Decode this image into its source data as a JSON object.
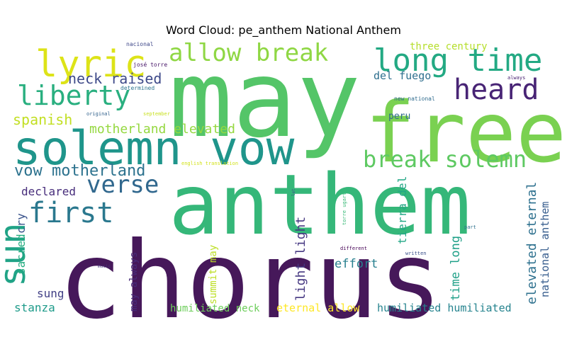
{
  "title": "Word Cloud: pe_anthem National Anthem",
  "words": [
    {
      "text": "may",
      "color": "#54c568"
    },
    {
      "text": "free",
      "color": "#7ad151"
    },
    {
      "text": "anthem",
      "color": "#35b779"
    },
    {
      "text": "chorus",
      "color": "#46185a"
    },
    {
      "text": "solemn vow",
      "color": "#1f958b"
    },
    {
      "text": "lyric",
      "color": "#dde318"
    },
    {
      "text": "allow break",
      "color": "#8fd744"
    },
    {
      "text": "long time",
      "color": "#23a983"
    },
    {
      "text": "heard",
      "color": "#482475"
    },
    {
      "text": "liberty",
      "color": "#29af7f"
    },
    {
      "text": "neck raised",
      "color": "#3e4a89"
    },
    {
      "text": "spanish",
      "color": "#c2df23"
    },
    {
      "text": "motherland elevated",
      "color": "#95d840"
    },
    {
      "text": "break solemn",
      "color": "#5ec962"
    },
    {
      "text": "vow motherland",
      "color": "#2c728e"
    },
    {
      "text": "verse",
      "color": "#31688e"
    },
    {
      "text": "first",
      "color": "#2a788e"
    },
    {
      "text": "declared",
      "color": "#472d7b"
    },
    {
      "text": "sun",
      "color": "#20a386"
    },
    {
      "text": "cry",
      "color": "#3a548c"
    },
    {
      "text": "sacred",
      "color": "#26ad81"
    },
    {
      "text": "sung",
      "color": "#424086"
    },
    {
      "text": "stanza",
      "color": "#1e9b8a"
    },
    {
      "text": "may always",
      "color": "#472c7a"
    },
    {
      "text": "summit may",
      "color": "#bddf26"
    },
    {
      "text": "humiliated neck",
      "color": "#6ccd5a"
    },
    {
      "text": "eternal allow",
      "color": "#fde725"
    },
    {
      "text": "humiliated humiliated",
      "color": "#25838e"
    },
    {
      "text": "light light",
      "color": "#453781"
    },
    {
      "text": "effort",
      "color": "#277f8e"
    },
    {
      "text": "time long",
      "color": "#1fa088"
    },
    {
      "text": "tierra del",
      "color": "#22a785"
    },
    {
      "text": "elevated eternal",
      "color": "#2d708e"
    },
    {
      "text": "national anthem",
      "color": "#365c8d"
    },
    {
      "text": "three century",
      "color": "#b5de2b"
    },
    {
      "text": "del fuego",
      "color": "#2e6f8e"
    },
    {
      "text": "peru",
      "color": "#306a8e"
    },
    {
      "text": "nacional",
      "color": "#3f4889"
    },
    {
      "text": "josé torre",
      "color": "#481769"
    },
    {
      "text": "determined",
      "color": "#2c738e"
    },
    {
      "text": "new national",
      "color": "#2f6b8e"
    },
    {
      "text": "always",
      "color": "#481f70"
    },
    {
      "text": "original",
      "color": "#33638d"
    },
    {
      "text": "september",
      "color": "#c8e020"
    },
    {
      "text": "english translation",
      "color": "#d2e21b"
    },
    {
      "text": "torre ugarte",
      "color": "#38b977"
    },
    {
      "text": "let",
      "color": "#3b528b"
    },
    {
      "text": "part",
      "color": "#2d718e"
    },
    {
      "text": "different",
      "color": "#440154"
    },
    {
      "text": "written",
      "color": "#3b518b"
    },
    {
      "text": "music",
      "color": "#46337f"
    }
  ]
}
